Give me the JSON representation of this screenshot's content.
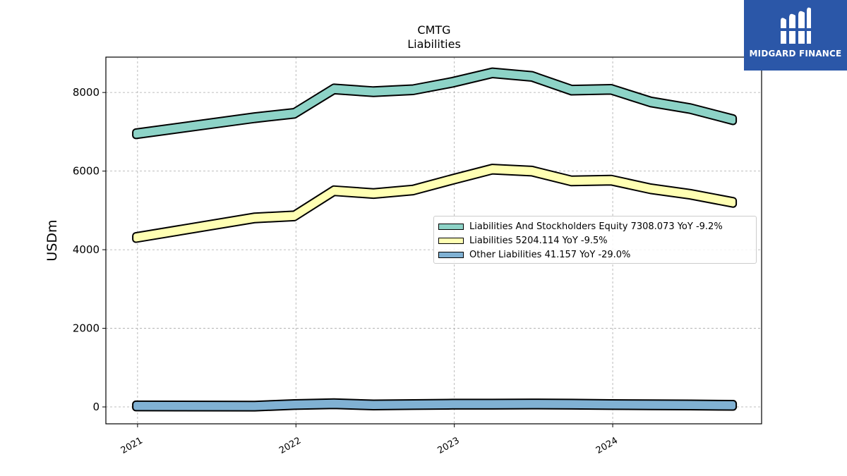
{
  "logo": {
    "text": "MIDGARD FINANCE",
    "icon": "midgard-m-logo-icon",
    "bg": "#2b57a8"
  },
  "chart_data": {
    "type": "area",
    "title": "CMTG",
    "subtitle": "Liabilities",
    "xlabel": "",
    "ylabel": "USDm",
    "ylim": [
      -430,
      8900
    ],
    "xlim": [
      2020.8,
      2024.94
    ],
    "xticks": [
      2021,
      2022,
      2023,
      2024
    ],
    "xtick_labels": [
      "2021",
      "2022",
      "2023",
      "2024"
    ],
    "yticks": [
      0,
      2000,
      4000,
      6000,
      8000
    ],
    "ytick_labels": [
      "0",
      "2000",
      "4000",
      "6000",
      "8000"
    ],
    "grid": true,
    "legend_position": "center-right",
    "x": [
      2020.99,
      2021.74,
      2021.99,
      2022.24,
      2022.49,
      2022.74,
      2022.99,
      2023.24,
      2023.49,
      2023.74,
      2023.99,
      2024.24,
      2024.49,
      2024.76
    ],
    "series": [
      {
        "name": "Liabilities And Stockholders Equity",
        "legend_label": "Liabilities And Stockholders Equity  7308.073 YoY -9.2%",
        "color": "#8dd3c7",
        "values": [
          6950,
          7360,
          7470,
          8090,
          8020,
          8070,
          8260,
          8500,
          8410,
          8060,
          8080,
          7760,
          7590,
          7308
        ]
      },
      {
        "name": "Liabilities",
        "legend_label": "Liabilities  5204.114 YoY -9.5%",
        "color": "#ffffb3",
        "values": [
          4310,
          4810,
          4860,
          5500,
          5430,
          5520,
          5790,
          6050,
          6000,
          5750,
          5770,
          5550,
          5410,
          5204
        ]
      },
      {
        "name": "Other Liabilities",
        "legend_label": "Other Liabilities  41.157 YoY -29.0%",
        "color": "#80b1d3",
        "values": [
          25,
          20,
          60,
          80,
          50,
          60,
          70,
          70,
          75,
          70,
          60,
          55,
          50,
          41
        ]
      }
    ]
  }
}
